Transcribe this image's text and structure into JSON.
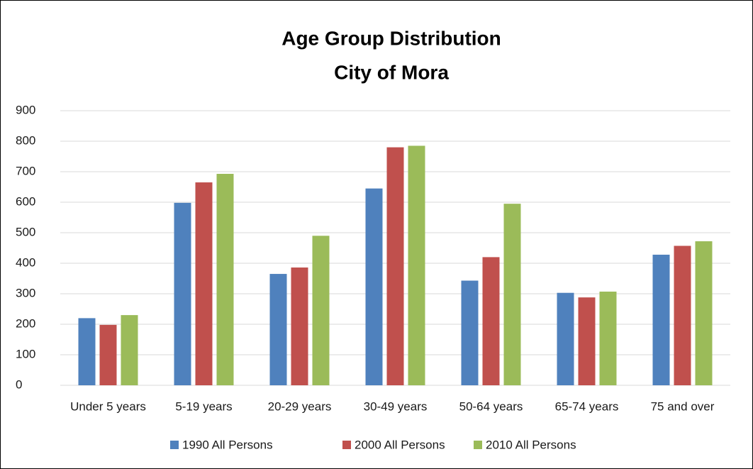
{
  "chart_data": {
    "type": "bar",
    "title": "Age Group Distribution",
    "subtitle": "City of Mora",
    "categories": [
      "Under 5 years",
      "5-19 years",
      "20-29 years",
      "30-49 years",
      "50-64 years",
      "65-74 years",
      "75 and over"
    ],
    "series": [
      {
        "name": "1990 All Persons",
        "color": "#4f81bd",
        "values": [
          220,
          598,
          365,
          645,
          343,
          303,
          428
        ]
      },
      {
        "name": "2000 All Persons",
        "color": "#c0504d",
        "values": [
          198,
          665,
          386,
          780,
          420,
          288,
          457
        ]
      },
      {
        "name": "2010 All Persons",
        "color": "#9bbb59",
        "values": [
          230,
          693,
          490,
          785,
          595,
          307,
          472
        ]
      }
    ],
    "ylim": [
      0,
      900
    ],
    "yticks": [
      0,
      100,
      200,
      300,
      400,
      500,
      600,
      700,
      800,
      900
    ],
    "grid": true,
    "legend": "bottom"
  }
}
